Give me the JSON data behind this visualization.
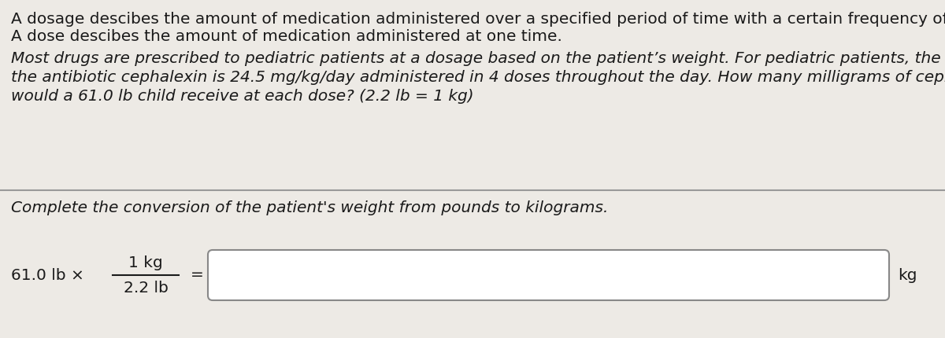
{
  "bg_color": "#edeae5",
  "text_color": "#1a1a1a",
  "line1": "A dosage descibes the amount of medication administered over a specified period of time with a certain frequency of dosing.",
  "line2": "A dose descibes the amount of medication administered at one time.",
  "para_line1": "Most drugs are prescribed to pediatric patients at a dosage based on the patient’s weight. For pediatric patients, the dosage of",
  "para_line2": "the antibiotic cephalexin is 24.5 mg/kg/day administered in 4 doses throughout the day. How many milligrams of cephalexin",
  "para_line3": "would a 61.0 lb child receive at each dose? (2.2 lb = 1 kg)",
  "section_label": "Complete the conversion of the patient's weight from pounds to kilograms.",
  "formula_prefix": "61.0 lb ×",
  "fraction_num": "1 kg",
  "fraction_den": "2.2 lb",
  "equals": "=",
  "suffix": "kg",
  "font_size_body": 14.5,
  "font_size_para": 14.5,
  "font_size_section": 14.5,
  "font_size_formula": 14.5,
  "box_facecolor": "#ffffff",
  "box_edgecolor": "#888888",
  "divider_color": "#999999"
}
